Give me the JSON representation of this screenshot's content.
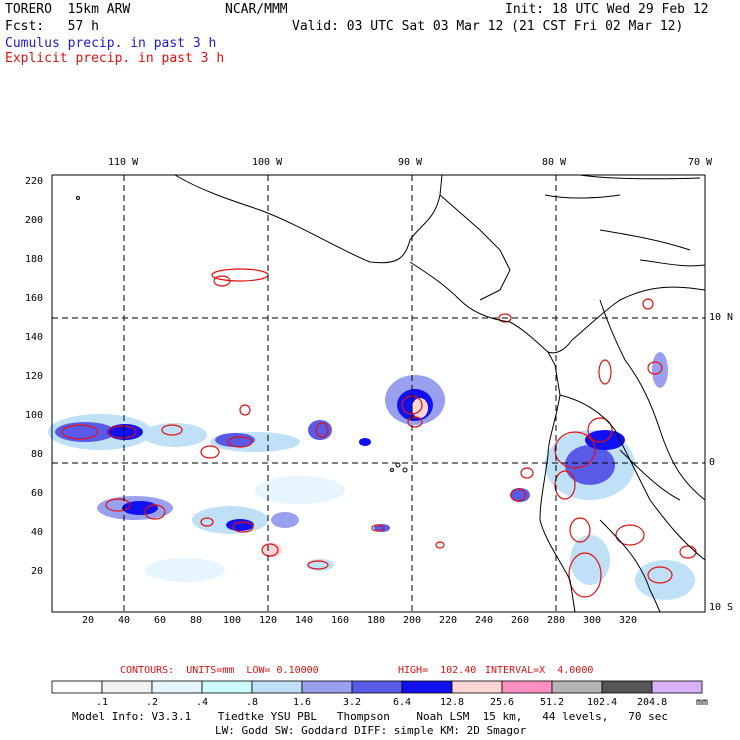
{
  "header": {
    "model": "TORERO  15km ARW",
    "org": "NCAR/MMM",
    "init": "Init: 18 UTC Wed 29 Feb 12",
    "fcst": "Fcst:   57 h",
    "valid": "Valid: 03 UTC Sat 03 Mar 12 (21 CST Fri 02 Mar 12)",
    "legend_cumulus": "Cumulus precip. in past 3 h",
    "legend_explicit": "Explicit precip. in past 3 h"
  },
  "map": {
    "top_lon_labels": [
      "110 W",
      "100 W",
      "90 W",
      "80 W",
      "70 W"
    ],
    "right_lat_labels": [
      "10 N",
      "0",
      "10 S"
    ],
    "y_ticks": [
      "220",
      "200",
      "180",
      "160",
      "140",
      "120",
      "100",
      "80",
      "60",
      "40",
      "20"
    ],
    "x_ticks": [
      "20",
      "40",
      "60",
      "80",
      "100",
      "120",
      "140",
      "160",
      "180",
      "200",
      "220",
      "240",
      "260",
      "280",
      "300",
      "320"
    ]
  },
  "contours": {
    "units": "CONTOURS:  UNITS=mm  LOW= 0.10000",
    "high": "HIGH=  102.40",
    "interval": "INTERVAL=X  4.0000"
  },
  "colorbar": {
    "labels": [
      ".1",
      ".2",
      ".4",
      ".8",
      "1.6",
      "3.2",
      "6.4",
      "12.8",
      "25.6",
      "51.2",
      "102.4",
      "204.8"
    ],
    "unit": "mm",
    "colors": [
      "#ffffff",
      "#f2f2f2",
      "#e6f5ff",
      "#ccffff",
      "#c0e0f8",
      "#9aa0f0",
      "#5a5ae8",
      "#1010f0",
      "#ffd6d6",
      "#ff90c0",
      "#b4b4b4",
      "#555555",
      "#d8b0ff"
    ]
  },
  "footer": {
    "line1": "Model Info: V3.3.1    Tiedtke YSU PBL   Thompson    Noah LSM  15 km,   44 levels,   70 sec",
    "line2": "LW: Godd SW: Goddard DIFF: simple KM: 2D Smagor"
  }
}
